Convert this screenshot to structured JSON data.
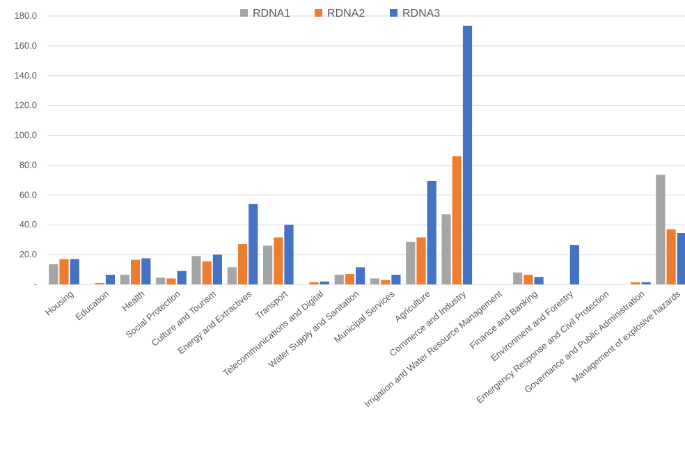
{
  "chart_data": {
    "type": "bar",
    "title": "",
    "xlabel": "",
    "ylabel": "",
    "ylim": [
      0,
      180
    ],
    "y_ticks": [
      "-",
      "20.0",
      "40.0",
      "60.0",
      "80.0",
      "100.0",
      "120.0",
      "140.0",
      "160.0",
      "180.0"
    ],
    "grid": true,
    "legend_position": "top",
    "categories": [
      "Housing",
      "Education",
      "Health",
      "Social Protection",
      "Culture and Tourism",
      "Energy and Extractives",
      "Transport",
      "Telecommunications and Digital",
      "Water Supply and Sanitation",
      "Municipal Services",
      "Agriculture",
      "Commerce and Industry",
      "Irrigation and Water Resource Management",
      "Finance and Banking",
      "Environment and Forestry",
      "Emergency Response and Civil Protection",
      "Governance and Public Administration",
      "Management of explosive hazards"
    ],
    "series": [
      {
        "name": "RDNA1",
        "color": "#a5a5a5",
        "values": [
          13.5,
          0,
          6.5,
          4.5,
          19,
          11.5,
          26,
          0,
          6.5,
          4,
          28.5,
          47,
          0,
          8,
          0,
          0,
          0,
          73.5
        ]
      },
      {
        "name": "RDNA2",
        "color": "#ed7d31",
        "values": [
          17,
          1,
          16.5,
          4,
          15.5,
          27,
          31.5,
          1.5,
          7,
          3,
          31.5,
          86,
          0,
          6.5,
          0,
          0,
          1.5,
          37
        ]
      },
      {
        "name": "RDNA3",
        "color": "#4472c4",
        "values": [
          17,
          6.5,
          17.5,
          9,
          20,
          54,
          40,
          2,
          11.5,
          6.5,
          69.5,
          173.5,
          0,
          5,
          26.5,
          0,
          1.5,
          34.5
        ]
      }
    ]
  }
}
